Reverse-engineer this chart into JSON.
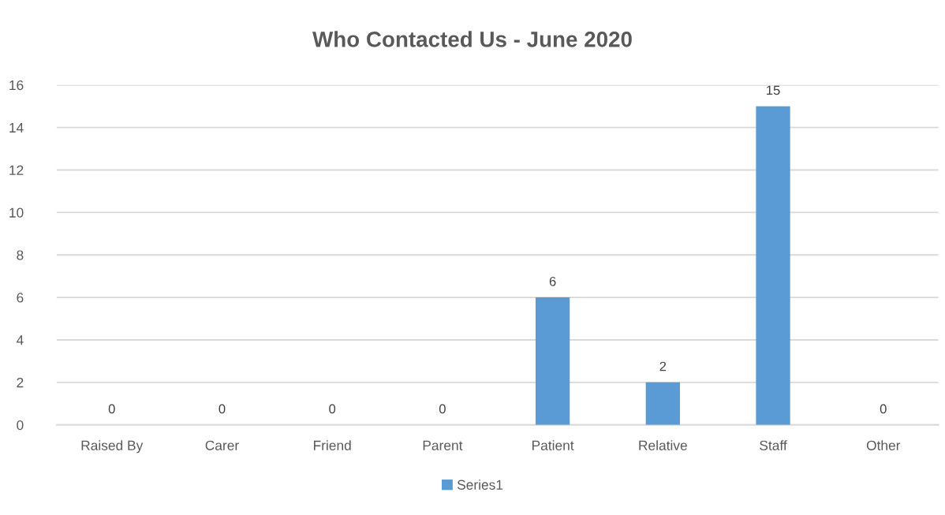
{
  "chart_data": {
    "type": "bar",
    "title": "Who Contacted Us - June 2020",
    "categories": [
      "Raised By",
      "Carer",
      "Friend",
      "Parent",
      "Patient",
      "Relative",
      "Staff",
      "Other"
    ],
    "series": [
      {
        "name": "Series1",
        "color": "#5b9bd5",
        "values": [
          0,
          0,
          0,
          0,
          6,
          2,
          15,
          0
        ]
      }
    ],
    "ylim": [
      0,
      16
    ],
    "yticks": [
      0,
      2,
      4,
      6,
      8,
      10,
      12,
      14,
      16
    ],
    "grid": "y",
    "legend": "bottom",
    "data_labels": true
  }
}
